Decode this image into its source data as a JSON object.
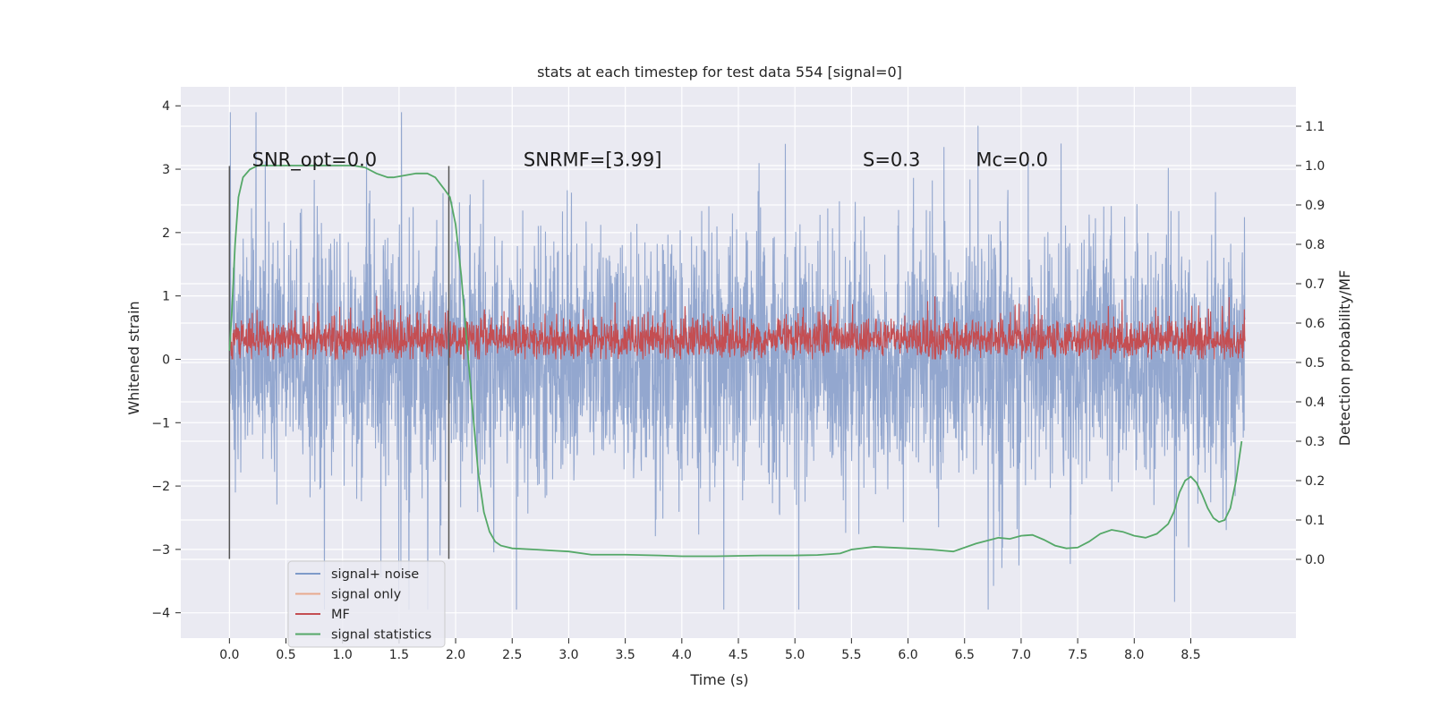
{
  "chart_data": {
    "type": "line",
    "title": "stats at each timestep for test data 554 [signal=0]",
    "xlabel": "Time (s)",
    "ylabel": "Whitened strain",
    "ylabel_right": "Detection probability/MF",
    "xlim": [
      -0.43,
      9.43
    ],
    "ylim": [
      -4.4,
      4.3
    ],
    "ylim_right": [
      -0.2,
      1.2
    ],
    "x_ticks": [
      "0.0",
      "0.5",
      "1.0",
      "1.5",
      "2.0",
      "2.5",
      "3.0",
      "3.5",
      "4.0",
      "4.5",
      "5.0",
      "5.5",
      "6.0",
      "6.5",
      "7.0",
      "7.5",
      "8.0",
      "8.5"
    ],
    "y_ticks": [
      "4",
      "3",
      "2",
      "1",
      "0",
      "−1",
      "−2",
      "−3",
      "−4"
    ],
    "y_right_ticks": [
      "1.1",
      "1.0",
      "0.9",
      "0.8",
      "0.7",
      "0.6",
      "0.5",
      "0.4",
      "0.3",
      "0.2",
      "0.1",
      "0.0"
    ],
    "annotations": [
      {
        "text": "SNR_opt=0.0",
        "x": 0.2,
        "y": 3.05
      },
      {
        "text": "SNRMF=[3.99]",
        "x": 2.6,
        "y": 3.05
      },
      {
        "text": "S=0.3",
        "x": 5.6,
        "y": 3.05
      },
      {
        "text": "Mc=0.0",
        "x": 6.6,
        "y": 3.05
      }
    ],
    "vertical_lines": [
      {
        "x": 0.0,
        "y_range": [
          -3.15,
          3.05
        ]
      },
      {
        "x": 1.94,
        "y_range": [
          -3.15,
          3.05
        ]
      }
    ],
    "legend": {
      "placement": "lower-left",
      "entries": [
        {
          "label": "signal+ noise",
          "color": "#7f9bc9"
        },
        {
          "label": "signal only",
          "color": "#e8a98d"
        },
        {
          "label": "MF",
          "color": "#c44e52"
        },
        {
          "label": "signal statistics",
          "color": "#55a868"
        }
      ]
    },
    "series": [
      {
        "name": "signal+ noise",
        "axis": "left",
        "color": "#8ea3cc",
        "x_range": [
          0.0,
          8.98
        ],
        "envelope": "noise band approx ±2 with spikes to ±3.9"
      },
      {
        "name": "MF",
        "axis": "left",
        "color": "#c44e52",
        "x_range": [
          0.0,
          8.98
        ],
        "envelope": "band approx 0.0 to 0.6 with spikes to 1.0"
      },
      {
        "name": "signal statistics",
        "axis": "right",
        "color": "#55a868",
        "x": [
          0.0,
          0.02,
          0.05,
          0.08,
          0.12,
          0.18,
          0.25,
          0.35,
          0.5,
          0.7,
          0.9,
          1.1,
          1.2,
          1.3,
          1.4,
          1.45,
          1.55,
          1.65,
          1.75,
          1.82,
          1.9,
          1.95,
          2.0,
          2.05,
          2.1,
          2.15,
          2.2,
          2.25,
          2.3,
          2.35,
          2.4,
          2.5,
          2.7,
          3.0,
          3.2,
          3.5,
          3.8,
          4.0,
          4.3,
          4.7,
          5.0,
          5.2,
          5.4,
          5.5,
          5.7,
          6.0,
          6.2,
          6.4,
          6.6,
          6.8,
          6.9,
          7.0,
          7.1,
          7.2,
          7.3,
          7.4,
          7.5,
          7.6,
          7.7,
          7.8,
          7.9,
          8.0,
          8.1,
          8.2,
          8.3,
          8.35,
          8.4,
          8.45,
          8.5,
          8.55,
          8.6,
          8.65,
          8.7,
          8.75,
          8.8,
          8.85,
          8.9,
          8.95
        ],
        "values": [
          0.53,
          0.62,
          0.8,
          0.92,
          0.97,
          0.99,
          1.0,
          1.0,
          1.0,
          1.0,
          1.0,
          1.0,
          0.995,
          0.98,
          0.97,
          0.97,
          0.975,
          0.98,
          0.98,
          0.97,
          0.94,
          0.92,
          0.85,
          0.72,
          0.55,
          0.38,
          0.22,
          0.12,
          0.07,
          0.045,
          0.035,
          0.028,
          0.025,
          0.02,
          0.012,
          0.012,
          0.01,
          0.008,
          0.008,
          0.01,
          0.01,
          0.011,
          0.015,
          0.025,
          0.032,
          0.028,
          0.025,
          0.02,
          0.04,
          0.055,
          0.052,
          0.06,
          0.062,
          0.05,
          0.035,
          0.028,
          0.03,
          0.045,
          0.065,
          0.075,
          0.07,
          0.06,
          0.055,
          0.065,
          0.09,
          0.12,
          0.17,
          0.2,
          0.21,
          0.195,
          0.165,
          0.13,
          0.105,
          0.095,
          0.1,
          0.13,
          0.2,
          0.3
        ]
      }
    ]
  }
}
